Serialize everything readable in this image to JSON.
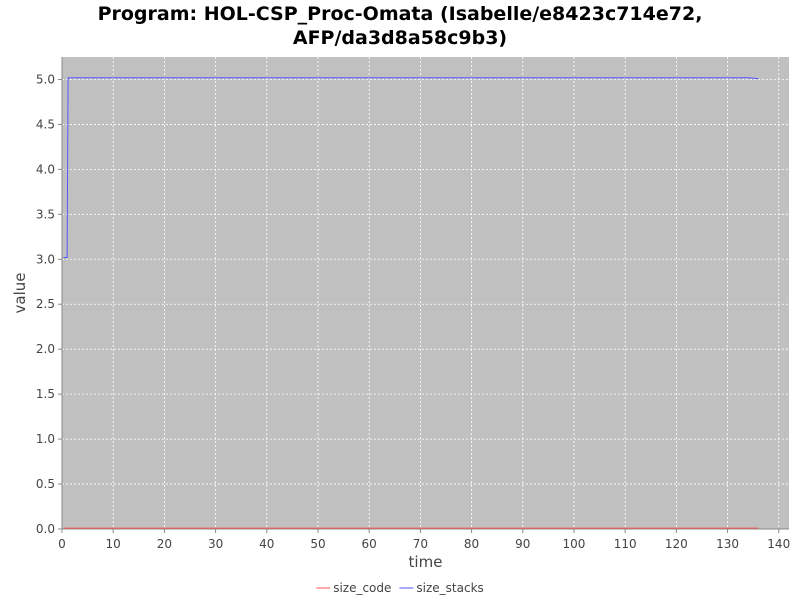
{
  "title_lines": [
    "Program: HOL-CSP_Proc-Omata (Isabelle/e8423c714e72,",
    "AFP/da3d8a58c9b3)"
  ],
  "chart_data": {
    "type": "line",
    "title": "Program: HOL-CSP_Proc-Omata (Isabelle/e8423c714e72, AFP/da3d8a58c9b3)",
    "xlabel": "time",
    "ylabel": "value",
    "xlim": [
      0,
      142
    ],
    "ylim": [
      0,
      5.25
    ],
    "xticks": [
      0,
      10,
      20,
      30,
      40,
      50,
      60,
      70,
      80,
      90,
      100,
      110,
      120,
      130,
      140
    ],
    "yticks": [
      0.0,
      0.5,
      1.0,
      1.5,
      2.0,
      2.5,
      3.0,
      3.5,
      4.0,
      4.5,
      5.0
    ],
    "ytick_labels": [
      "0.0",
      "0.5",
      "1.0",
      "1.5",
      "2.0",
      "2.5",
      "3.0",
      "3.5",
      "4.0",
      "4.5",
      "5.0"
    ],
    "grid": true,
    "legend_position": "bottom",
    "background": "#c0c0c0",
    "series": [
      {
        "name": "size_code",
        "color": "#ff5555",
        "points": [
          [
            0.3,
            0.01
          ],
          [
            136,
            0.01
          ]
        ]
      },
      {
        "name": "size_stacks",
        "color": "#5555ff",
        "points": [
          [
            0.3,
            3.02
          ],
          [
            1.0,
            3.02
          ],
          [
            1.2,
            5.02
          ],
          [
            134,
            5.02
          ],
          [
            136,
            5.01
          ]
        ]
      }
    ]
  }
}
